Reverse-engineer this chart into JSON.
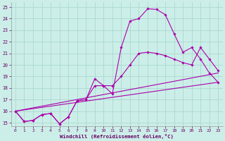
{
  "xlabel": "Windchill (Refroidissement éolien,°C)",
  "xlim": [
    -0.5,
    23.5
  ],
  "ylim": [
    14.7,
    25.4
  ],
  "xticks": [
    0,
    1,
    2,
    3,
    4,
    5,
    6,
    7,
    8,
    9,
    10,
    11,
    12,
    13,
    14,
    15,
    16,
    17,
    18,
    19,
    20,
    21,
    22,
    23
  ],
  "yticks": [
    15,
    16,
    17,
    18,
    19,
    20,
    21,
    22,
    23,
    24,
    25
  ],
  "bg_color": "#cceee8",
  "grid_color": "#aad8d0",
  "line_color": "#aa00aa",
  "line1_x": [
    0,
    1,
    2,
    3,
    4,
    5,
    6,
    7,
    8,
    9,
    10,
    11,
    12,
    13,
    14,
    15,
    16,
    17,
    18,
    19,
    20,
    21,
    22,
    23
  ],
  "line1_y": [
    16.0,
    15.1,
    15.2,
    15.7,
    15.8,
    14.9,
    15.5,
    16.9,
    17.0,
    18.8,
    18.2,
    17.5,
    21.5,
    23.8,
    24.0,
    24.85,
    24.8,
    24.35,
    22.7,
    21.1,
    21.5,
    20.5,
    19.3,
    18.5
  ],
  "line2_x": [
    0,
    1,
    2,
    3,
    4,
    5,
    6,
    7,
    8,
    9,
    10,
    11,
    12,
    13,
    14,
    15,
    16,
    17,
    18,
    19,
    20,
    21,
    22,
    23
  ],
  "line2_y": [
    16.0,
    15.1,
    15.2,
    15.7,
    15.8,
    14.9,
    15.5,
    16.9,
    17.0,
    18.2,
    18.2,
    18.2,
    19.0,
    20.0,
    21.0,
    21.1,
    21.0,
    20.8,
    20.5,
    20.2,
    20.0,
    21.5,
    20.5,
    19.5
  ],
  "line3_x": [
    0,
    23
  ],
  "line3_y": [
    16.0,
    18.5
  ],
  "line4_x": [
    0,
    23
  ],
  "line4_y": [
    16.0,
    19.3
  ]
}
